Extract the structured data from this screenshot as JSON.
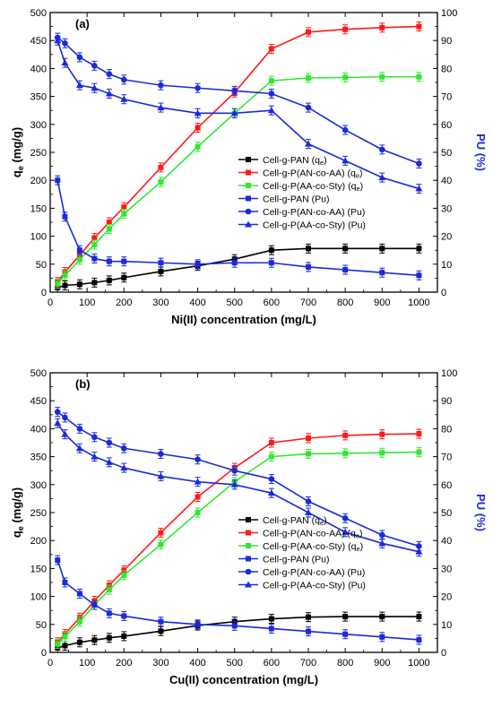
{
  "chart_data": [
    {
      "type": "line",
      "panel_label": "(a)",
      "xlabel": "Ni(II) concentration (mg/L)",
      "ylabel": "q",
      "ylabel_sub": "e",
      "ylabel_unit": " (mg/g)",
      "y2label": "PU (%)",
      "xlim": [
        0,
        1050
      ],
      "ylim": [
        0,
        500
      ],
      "y2lim": [
        0,
        100
      ],
      "xticks": [
        0,
        100,
        200,
        300,
        400,
        500,
        600,
        700,
        800,
        900,
        1000
      ],
      "yticks": [
        0,
        50,
        100,
        150,
        200,
        250,
        300,
        350,
        400,
        450,
        500
      ],
      "y2ticks": [
        0,
        10,
        20,
        30,
        40,
        50,
        60,
        70,
        80,
        90,
        100
      ],
      "legend_position": "center-right",
      "x": [
        20,
        40,
        80,
        120,
        160,
        200,
        300,
        400,
        500,
        600,
        700,
        800,
        900,
        1000
      ],
      "series": [
        {
          "name": "Cell-g-PAN (q",
          "name_sub": "e",
          "name_tail": ")",
          "axis": "left",
          "marker": "square",
          "color": "#000000",
          "values": [
            8,
            12,
            14,
            17,
            21,
            26,
            37,
            47,
            59,
            75,
            78,
            78,
            78,
            78
          ]
        },
        {
          "name": "Cell-g-P(AN-co-AA) (q",
          "name_sub": "e",
          "name_tail": ")",
          "axis": "left",
          "marker": "square",
          "color": "#ff1a1a",
          "values": [
            18,
            36,
            66,
            97,
            125,
            152,
            223,
            294,
            357,
            435,
            465,
            470,
            473,
            475
          ]
        },
        {
          "name": "Cell-g-P(AA-co-Sty) (q",
          "name_sub": "e",
          "name_tail": ")",
          "axis": "left",
          "marker": "square",
          "color": "#33e633",
          "values": [
            15,
            30,
            58,
            85,
            113,
            140,
            197,
            260,
            320,
            378,
            383,
            384,
            385,
            385
          ]
        },
        {
          "name": "Cell-g-PAN (Pu)",
          "axis": "right",
          "marker": "square",
          "color": "#1a2bd8",
          "values": [
            40,
            27,
            15,
            12,
            11,
            11,
            10.5,
            10,
            10.5,
            10.5,
            9,
            8,
            7,
            6
          ]
        },
        {
          "name": "Cell-g-P(AN-co-AA) (Pu)",
          "axis": "right",
          "marker": "circle",
          "color": "#1a2bd8",
          "values": [
            91,
            89,
            84,
            81,
            78,
            76,
            74,
            73,
            72,
            71,
            66,
            58,
            51,
            46
          ]
        },
        {
          "name": "Cell-g-P(AA-co-Sty) (Pu)",
          "axis": "right",
          "marker": "triangle",
          "color": "#1a2bd8",
          "values": [
            90,
            82,
            74,
            73,
            71,
            69,
            66,
            64,
            64,
            65,
            53,
            47,
            41,
            37
          ]
        }
      ]
    },
    {
      "type": "line",
      "panel_label": "(b)",
      "xlabel": "Cu(II) concentration (mg/L)",
      "ylabel": "q",
      "ylabel_sub": "e",
      "ylabel_unit": " (mg/g)",
      "y2label": "PU (%)",
      "xlim": [
        0,
        1050
      ],
      "ylim": [
        0,
        500
      ],
      "y2lim": [
        0,
        100
      ],
      "xticks": [
        0,
        100,
        200,
        300,
        400,
        500,
        600,
        700,
        800,
        900,
        1000
      ],
      "yticks": [
        0,
        50,
        100,
        150,
        200,
        250,
        300,
        350,
        400,
        450,
        500
      ],
      "y2ticks": [
        0,
        10,
        20,
        30,
        40,
        50,
        60,
        70,
        80,
        90,
        100
      ],
      "legend_position": "center-right",
      "x": [
        20,
        40,
        80,
        120,
        160,
        200,
        300,
        400,
        500,
        600,
        700,
        800,
        900,
        1000
      ],
      "series": [
        {
          "name": "Cell-g-PAN (q",
          "name_sub": "e",
          "name_tail": ")",
          "axis": "left",
          "marker": "square",
          "color": "#000000",
          "values": [
            8,
            12,
            18,
            22,
            26,
            29,
            38,
            48,
            55,
            60,
            63,
            64,
            64,
            64
          ]
        },
        {
          "name": "Cell-g-P(AN-co-AA) (q",
          "name_sub": "e",
          "name_tail": ")",
          "axis": "left",
          "marker": "square",
          "color": "#ff1a1a",
          "values": [
            18,
            33,
            62,
            92,
            120,
            147,
            214,
            278,
            330,
            375,
            383,
            388,
            390,
            391
          ]
        },
        {
          "name": "Cell-g-P(AA-co-Sty) (q",
          "name_sub": "e",
          "name_tail": ")",
          "axis": "left",
          "marker": "square",
          "color": "#33e633",
          "values": [
            15,
            28,
            55,
            85,
            112,
            138,
            193,
            250,
            305,
            350,
            355,
            356,
            357,
            358
          ]
        },
        {
          "name": "Cell-g-PAN (Pu)",
          "axis": "right",
          "marker": "square",
          "color": "#1a2bd8",
          "values": [
            33,
            25,
            21,
            17,
            14,
            13,
            11,
            10,
            9.5,
            8.5,
            7.5,
            6.5,
            5.5,
            4.5
          ]
        },
        {
          "name": "Cell-g-P(AN-co-AA) (Pu)",
          "axis": "right",
          "marker": "circle",
          "color": "#1a2bd8",
          "values": [
            86,
            84,
            80,
            77,
            75,
            73,
            71,
            69,
            65,
            62,
            54,
            48,
            42,
            38
          ]
        },
        {
          "name": "Cell-g-P(AA-co-Sty) (Pu)",
          "axis": "right",
          "marker": "triangle",
          "color": "#1a2bd8",
          "values": [
            82,
            78,
            73,
            70,
            68,
            66,
            63,
            61,
            60,
            57,
            50,
            43,
            39,
            36
          ]
        }
      ]
    }
  ]
}
